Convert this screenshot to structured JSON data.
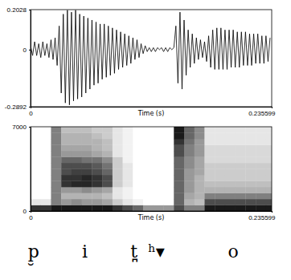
{
  "chart_data": [
    {
      "type": "line",
      "xlabel": "Time (s)",
      "color": "#000000",
      "xlim": [
        0,
        0.235599
      ],
      "xticks": [
        0,
        0.235599
      ],
      "ylim": [
        -0.2892,
        0.2028
      ],
      "yticks": [
        -0.2892,
        0,
        0.2028
      ],
      "x": [
        0,
        0.002,
        0.004,
        0.006,
        0.008,
        0.01,
        0.012,
        0.014,
        0.016,
        0.018,
        0.02,
        0.022,
        0.024,
        0.026,
        0.028,
        0.03,
        0.032,
        0.034,
        0.036,
        0.038,
        0.04,
        0.042,
        0.044,
        0.046,
        0.048,
        0.05,
        0.052,
        0.054,
        0.056,
        0.058,
        0.06,
        0.062,
        0.064,
        0.066,
        0.068,
        0.07,
        0.072,
        0.074,
        0.076,
        0.078,
        0.08,
        0.082,
        0.084,
        0.086,
        0.088,
        0.09,
        0.092,
        0.094,
        0.096,
        0.098,
        0.1,
        0.102,
        0.104,
        0.106,
        0.108,
        0.11,
        0.112,
        0.114,
        0.116,
        0.118,
        0.12,
        0.122,
        0.124,
        0.126,
        0.128,
        0.13,
        0.132,
        0.134,
        0.136,
        0.138,
        0.14,
        0.142,
        0.144,
        0.146,
        0.148,
        0.15,
        0.152,
        0.154,
        0.156,
        0.158,
        0.16,
        0.162,
        0.164,
        0.166,
        0.168,
        0.17,
        0.172,
        0.174,
        0.176,
        0.178,
        0.18,
        0.182,
        0.184,
        0.186,
        0.188,
        0.19,
        0.192,
        0.194,
        0.196,
        0.198,
        0.2,
        0.202,
        0.204,
        0.206,
        0.208,
        0.21,
        0.212,
        0.214,
        0.216,
        0.218,
        0.22,
        0.222,
        0.224,
        0.226,
        0.228,
        0.23,
        0.232,
        0.234
      ],
      "values": [
        0.02,
        -0.03,
        0.04,
        -0.03,
        0.03,
        -0.04,
        0.04,
        -0.03,
        0.03,
        -0.04,
        0.05,
        -0.05,
        0.06,
        -0.08,
        0.12,
        -0.22,
        0.18,
        -0.27,
        0.2,
        -0.28,
        0.19,
        -0.26,
        0.2,
        -0.25,
        0.18,
        -0.24,
        0.17,
        -0.22,
        0.16,
        -0.2,
        0.15,
        -0.18,
        0.14,
        -0.17,
        0.13,
        -0.15,
        0.13,
        -0.14,
        0.12,
        -0.13,
        0.11,
        -0.12,
        0.1,
        -0.1,
        0.09,
        -0.09,
        0.08,
        -0.08,
        0.07,
        -0.07,
        0.06,
        -0.05,
        0.05,
        -0.04,
        0.03,
        -0.02,
        0.02,
        -0.01,
        0.01,
        -0.01,
        0.01,
        -0.01,
        0.01,
        0,
        0.01,
        -0.01,
        0.01,
        -0.01,
        0.01,
        0,
        0.01,
        0.12,
        -0.17,
        0.19,
        -0.2,
        0.15,
        -0.13,
        0.1,
        -0.09,
        0.08,
        -0.07,
        0.06,
        -0.05,
        0.05,
        -0.04,
        0.04,
        -0.06,
        0.07,
        -0.09,
        0.1,
        -0.1,
        0.11,
        -0.1,
        0.11,
        -0.1,
        0.1,
        -0.1,
        0.1,
        -0.09,
        0.1,
        -0.09,
        0.09,
        -0.09,
        0.09,
        -0.08,
        0.09,
        -0.08,
        0.08,
        -0.08,
        0.08,
        -0.07,
        0.08,
        -0.07,
        0.07,
        -0.07,
        0.07,
        -0.06,
        0.06
      ]
    },
    {
      "type": "heatmap",
      "xlabel": "Time (s)",
      "xlim": [
        0,
        0.235599
      ],
      "xticks": [
        0,
        0.235599
      ],
      "ylim": [
        0,
        7000
      ],
      "yticks": [
        0,
        7000
      ],
      "zlim": [
        0,
        1
      ],
      "x_bins": [
        0,
        0.01,
        0.02,
        0.03,
        0.04,
        0.05,
        0.06,
        0.07,
        0.08,
        0.09,
        0.1,
        0.11,
        0.12,
        0.13,
        0.14,
        0.15,
        0.16,
        0.17,
        0.18,
        0.19,
        0.2,
        0.21,
        0.22,
        0.23,
        0.235599
      ],
      "y_bins": [
        0,
        500,
        1000,
        1500,
        2000,
        2500,
        3000,
        3500,
        4000,
        4500,
        5000,
        5500,
        6000,
        6500,
        7000
      ],
      "cells": [
        [
          0.8,
          0.1,
          0,
          0,
          0,
          0,
          0,
          0,
          0,
          0,
          0,
          0,
          0,
          0
        ],
        [
          0.8,
          0.1,
          0,
          0,
          0,
          0,
          0,
          0,
          0,
          0,
          0,
          0,
          0,
          0
        ],
        [
          0.9,
          0.5,
          0.5,
          0.5,
          0.5,
          0.5,
          0.5,
          0.5,
          0.5,
          0.5,
          0.5,
          0.5,
          0.5,
          0.5
        ],
        [
          0.9,
          0.4,
          0.3,
          0.4,
          0.8,
          0.8,
          0.7,
          0.7,
          0.6,
          0.4,
          0.35,
          0.3,
          0.3,
          0.25
        ],
        [
          0.9,
          0.45,
          0.3,
          0.4,
          0.85,
          0.8,
          0.75,
          0.7,
          0.6,
          0.4,
          0.35,
          0.3,
          0.3,
          0.25
        ],
        [
          0.9,
          0.4,
          0.3,
          0.45,
          0.85,
          0.85,
          0.75,
          0.7,
          0.55,
          0.4,
          0.35,
          0.3,
          0.3,
          0.25
        ],
        [
          0.9,
          0.4,
          0.3,
          0.4,
          0.8,
          0.8,
          0.7,
          0.65,
          0.55,
          0.35,
          0.3,
          0.3,
          0.25,
          0.2
        ],
        [
          0.9,
          0.35,
          0.25,
          0.35,
          0.7,
          0.7,
          0.6,
          0.55,
          0.45,
          0.3,
          0.25,
          0.25,
          0.2,
          0.2
        ],
        [
          0.8,
          0.2,
          0.1,
          0.1,
          0.2,
          0.2,
          0.2,
          0.2,
          0.2,
          0.1,
          0.1,
          0.1,
          0.1,
          0.1
        ],
        [
          0.7,
          0.1,
          0.05,
          0.05,
          0.1,
          0.1,
          0.1,
          0.1,
          0.05,
          0.05,
          0.05,
          0.05,
          0.05,
          0.05
        ],
        [
          0.6,
          0.05,
          0,
          0,
          0,
          0,
          0,
          0,
          0,
          0,
          0,
          0,
          0,
          0
        ],
        [
          0.4,
          0,
          0,
          0,
          0,
          0,
          0,
          0,
          0,
          0,
          0,
          0,
          0,
          0
        ],
        [
          0.4,
          0,
          0,
          0,
          0,
          0,
          0,
          0,
          0,
          0,
          0,
          0,
          0,
          0
        ],
        [
          0.4,
          0,
          0,
          0,
          0,
          0,
          0,
          0,
          0,
          0,
          0,
          0,
          0,
          0
        ],
        [
          0.7,
          0.6,
          0.6,
          0.6,
          0.6,
          0.6,
          0.6,
          0.6,
          0.6,
          0.7,
          0.7,
          0.8,
          0.9,
          0.9
        ],
        [
          0.5,
          0.3,
          0.35,
          0.4,
          0.4,
          0.4,
          0.4,
          0.45,
          0.45,
          0.5,
          0.5,
          0.55,
          0.6,
          0.6
        ],
        [
          0.5,
          0.25,
          0.3,
          0.3,
          0.3,
          0.3,
          0.35,
          0.35,
          0.35,
          0.4,
          0.4,
          0.4,
          0.45,
          0.45
        ],
        [
          0.9,
          0.7,
          0.5,
          0.3,
          0.25,
          0.2,
          0.2,
          0.2,
          0.15,
          0.15,
          0.15,
          0.1,
          0.1,
          0.1
        ],
        [
          0.9,
          0.7,
          0.5,
          0.3,
          0.25,
          0.2,
          0.2,
          0.2,
          0.15,
          0.15,
          0.15,
          0.1,
          0.1,
          0.1
        ],
        [
          0.9,
          0.7,
          0.5,
          0.3,
          0.25,
          0.2,
          0.2,
          0.2,
          0.15,
          0.15,
          0.15,
          0.1,
          0.1,
          0.1
        ],
        [
          0.9,
          0.7,
          0.5,
          0.3,
          0.25,
          0.2,
          0.2,
          0.2,
          0.15,
          0.15,
          0.15,
          0.1,
          0.1,
          0.1
        ],
        [
          0.9,
          0.7,
          0.5,
          0.3,
          0.25,
          0.2,
          0.2,
          0.2,
          0.15,
          0.15,
          0.15,
          0.1,
          0.1,
          0.1
        ],
        [
          0.9,
          0.7,
          0.5,
          0.3,
          0.25,
          0.2,
          0.2,
          0.2,
          0.15,
          0.15,
          0.15,
          0.1,
          0.1,
          0.1
        ],
        [
          0.9,
          0.7,
          0.5,
          0.3,
          0.25,
          0.2,
          0.2,
          0.2,
          0.15,
          0.15,
          0.15,
          0.1,
          0.1,
          0.1
        ]
      ],
      "annotations": [
        {
          "text": "p̮",
          "x": 0.003
        },
        {
          "text": "i",
          "x": 0.053
        },
        {
          "text": "t̪",
          "x": 0.101
        },
        {
          "text": "ʰ▾",
          "x": 0.123
        },
        {
          "text": "o",
          "x": 0.198
        }
      ]
    }
  ]
}
